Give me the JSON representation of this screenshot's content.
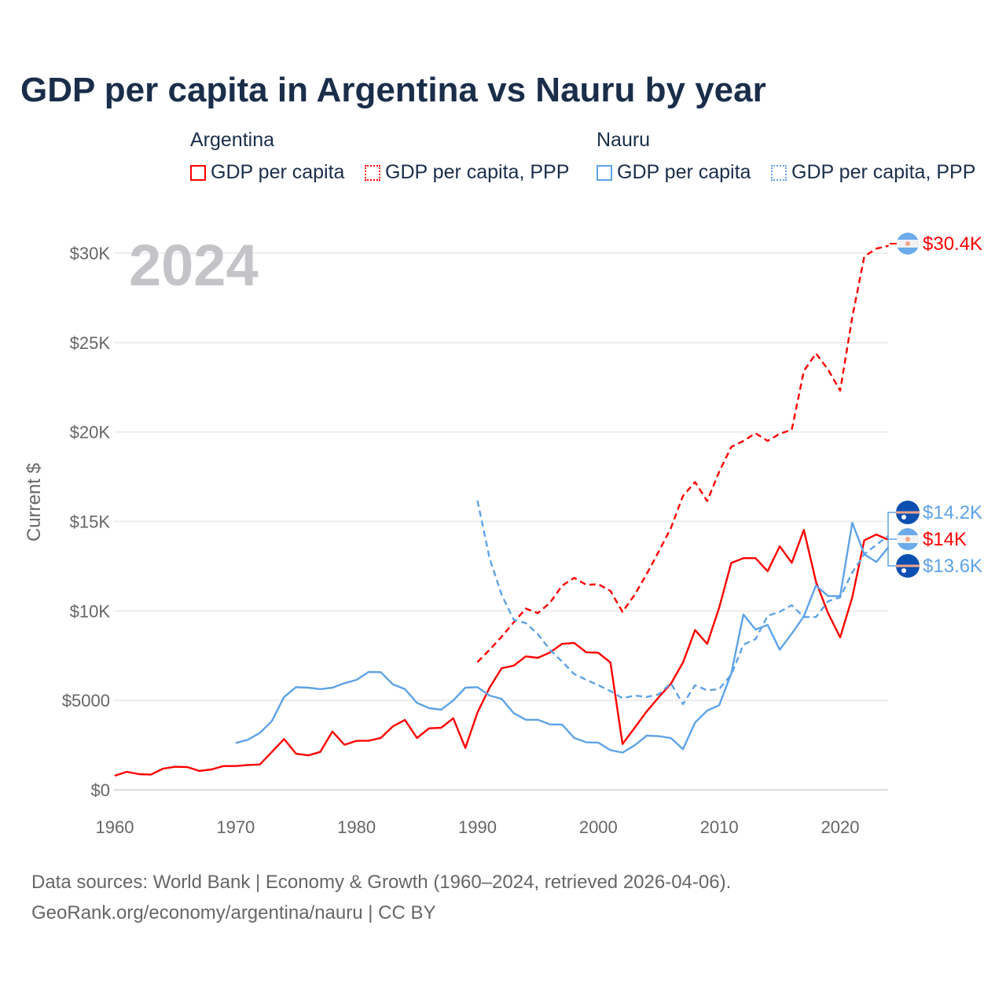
{
  "chart_data": {
    "type": "line",
    "title": "GDP per capita in Argentina vs Nauru by year",
    "ylabel": "Current $",
    "xlabel": "",
    "current_year": "2024",
    "xlim": [
      1960,
      2024
    ],
    "ylim": [
      0,
      31000
    ],
    "x_ticks": [
      1960,
      1970,
      1980,
      1990,
      2000,
      2010,
      2020
    ],
    "x_tick_labels": [
      "1960",
      "1970",
      "1980",
      "1990",
      "2000",
      "2010",
      "2020"
    ],
    "y_ticks": [
      0,
      5000,
      10000,
      15000,
      20000,
      25000,
      30000
    ],
    "y_tick_labels": [
      "$0",
      "$5000",
      "$10K",
      "$15K",
      "$20K",
      "$25K",
      "$30K"
    ],
    "grid": true,
    "legend_groups": [
      {
        "name": "Argentina",
        "items": [
          "GDP per capita",
          "GDP per capita, PPP"
        ]
      },
      {
        "name": "Nauru",
        "items": [
          "GDP per capita",
          "GDP per capita, PPP"
        ]
      }
    ],
    "series": [
      {
        "name": "Argentina GDP per capita",
        "country": "Argentina",
        "color": "#ff0000",
        "dashed": false,
        "start": 1960,
        "end_label": "$14K",
        "values": [
          790,
          1010,
          880,
          850,
          1185,
          1290,
          1275,
          1060,
          1140,
          1330,
          1330,
          1390,
          1420,
          2120,
          2840,
          2020,
          1930,
          2120,
          3260,
          2520,
          2740,
          2750,
          2900,
          3550,
          3910,
          2900,
          3440,
          3470,
          4000,
          2340,
          4320,
          5710,
          6800,
          6940,
          7460,
          7380,
          7680,
          8160,
          8210,
          7690,
          7660,
          7120,
          2560,
          3470,
          4390,
          5180,
          5930,
          7120,
          8930,
          8160,
          10190,
          12690,
          12950,
          12950,
          12220,
          13610,
          12690,
          14530,
          11630,
          9880,
          8520,
          10760,
          13950,
          14270,
          13970
        ]
      },
      {
        "name": "Argentina GDP per capita, PPP",
        "country": "Argentina",
        "color": "#ff0000",
        "dashed": true,
        "start": 1990,
        "end_label": "$30.4K",
        "values": [
          7140,
          7830,
          8560,
          9360,
          10130,
          9880,
          10460,
          11410,
          11850,
          11460,
          11490,
          11120,
          9950,
          10900,
          12070,
          13320,
          14630,
          16430,
          17200,
          16140,
          17780,
          19170,
          19500,
          19930,
          19500,
          19900,
          20120,
          23410,
          24390,
          23490,
          22310,
          26410,
          29810,
          30250,
          30410
        ]
      },
      {
        "name": "Nauru GDP per capita",
        "country": "Nauru",
        "color": "#5ea3e8",
        "dashed": false,
        "start": 1970,
        "end_label": "$13.6K",
        "values": [
          2620,
          2800,
          3180,
          3850,
          5190,
          5740,
          5710,
          5630,
          5710,
          5960,
          6150,
          6590,
          6580,
          5900,
          5630,
          4860,
          4570,
          4480,
          5000,
          5710,
          5740,
          5270,
          5080,
          4290,
          3920,
          3920,
          3660,
          3650,
          2900,
          2660,
          2640,
          2220,
          2080,
          2490,
          3030,
          3000,
          2900,
          2270,
          3760,
          4430,
          4730,
          6510,
          9800,
          8960,
          9220,
          7830,
          8730,
          9700,
          11420,
          10830,
          10830,
          14930,
          13170,
          12740,
          13570
        ]
      },
      {
        "name": "Nauru GDP per capita, PPP",
        "country": "Nauru",
        "color": "#5ea3e8",
        "dashed": true,
        "start": 1990,
        "end_label": "$14.2K",
        "values": [
          16170,
          12950,
          10900,
          9510,
          9320,
          8700,
          7830,
          7170,
          6470,
          6150,
          5850,
          5520,
          5120,
          5270,
          5190,
          5340,
          5960,
          4790,
          5850,
          5560,
          5630,
          6450,
          8120,
          8420,
          9730,
          9950,
          10320,
          9660,
          9660,
          10540,
          10760,
          12160,
          13170,
          13700,
          14200
        ]
      }
    ]
  },
  "colors": {
    "argentina": "#ff0000",
    "nauru": "#5ea3e8"
  },
  "footer": {
    "line1": "Data sources: World Bank | Economy & Growth (1960–2024, retrieved 2026-04-06).",
    "line2": "GeoRank.org/economy/argentina/nauru | CC BY"
  }
}
